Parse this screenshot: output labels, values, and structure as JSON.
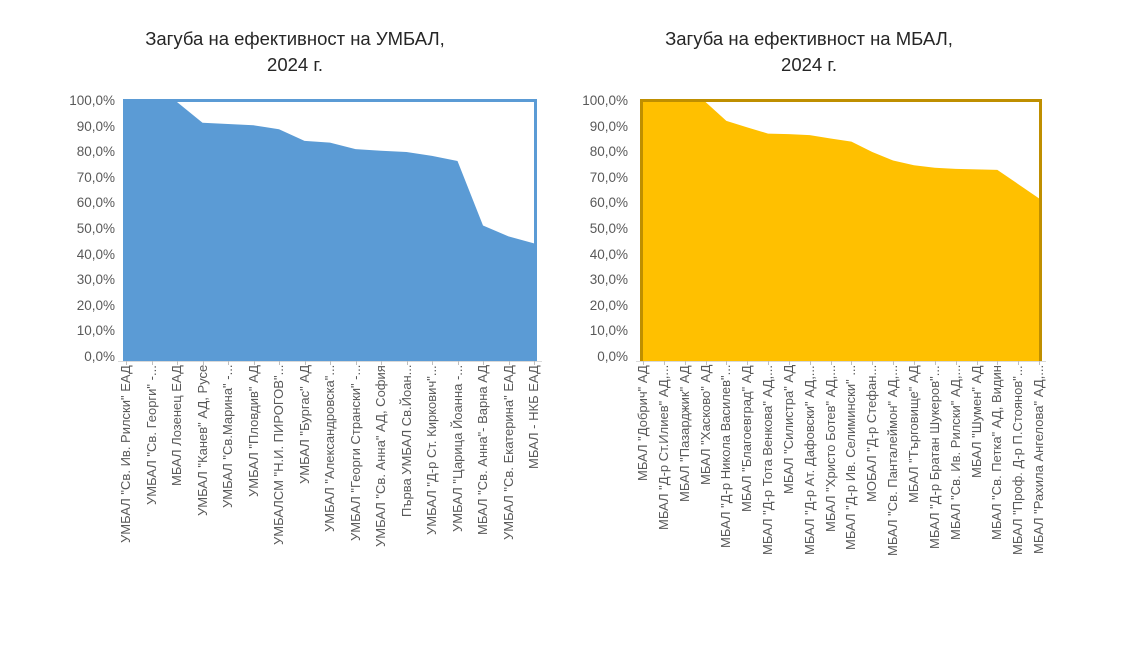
{
  "page": {
    "background": "#ffffff"
  },
  "style": {
    "title_color": "#262626",
    "axis_label_color": "#595959",
    "axis_line_color": "#D9D9D9",
    "tick_color": "#BFBFBF"
  },
  "chart_data": [
    {
      "type": "area",
      "title": "Загуба на ефективност на УМБАЛ,\n2024 г.",
      "xlabel": "",
      "ylabel": "",
      "legend": "none",
      "grid": false,
      "fill_color": "#5B9BD5",
      "plot_border_color": "#5B9BD5",
      "y_axis": {
        "min": 0,
        "max": 100,
        "step": 10,
        "format": "0,0%"
      },
      "y_tick_labels": [
        "100,0%",
        "90,0%",
        "80,0%",
        "70,0%",
        "60,0%",
        "50,0%",
        "40,0%",
        "30,0%",
        "20,0%",
        "10,0%",
        "0,0%"
      ],
      "categories": [
        "УМБАЛ \"Св. Ив. Рилски\" ЕАД",
        "УМБАЛ \"Св. Георги\" -...",
        "МБАЛ Лозенец ЕАД",
        "УМБАЛ \"Канев\" АД, Русе",
        "УМБАЛ \"Св.Марина\" -...",
        "УМБАЛ \"Пловдив\" АД",
        "УМБАЛСМ \"Н.И. ПИРОГОВ\"...",
        "УМБАЛ \"Бургас\" АД",
        "УМБАЛ \"Александровска\"...",
        "УМБАЛ \"Георги Странски\" -...",
        "УМБАЛ \"Св. Анна\" АД, София",
        "Първа УМБАЛ Св.Йоан...",
        "УМБАЛ \"Д-р Ст. Киркович\"...",
        "УМБАЛ \"Царица Йоанна -...",
        "МБАЛ \"Св. Анна\"- Варна АД",
        "УМБАЛ \"Св. Екатерина\" ЕАД",
        "МБАЛ - НКБ ЕАД"
      ],
      "values": [
        100,
        100,
        100,
        92,
        91.5,
        91,
        89.5,
        85,
        84.3,
        81.8,
        81.2,
        80.7,
        79.2,
        77.2,
        52.3,
        48.1,
        45.4
      ]
    },
    {
      "type": "area",
      "title": "Загуба на ефективност на МБАЛ,\n2024 г.",
      "xlabel": "",
      "ylabel": "",
      "legend": "none",
      "grid": false,
      "fill_color": "#FFC000",
      "plot_border_color": "#BF8F00",
      "y_axis": {
        "min": 0,
        "max": 100,
        "step": 10,
        "format": "0,0%"
      },
      "y_tick_labels": [
        "100,0%",
        "90,0%",
        "80,0%",
        "70,0%",
        "60,0%",
        "50,0%",
        "40,0%",
        "30,0%",
        "20,0%",
        "10,0%",
        "0,0%"
      ],
      "categories": [
        "МБАЛ \"Добрич\" АД",
        "МБАЛ \"Д-р Ст.Илиев\" АД,...",
        "МБАЛ \"Пазарджик\" АД",
        "МБАЛ \"Хасково\" АД",
        "МБАЛ \"Д-р Никола Василев\"...",
        "МБАЛ \"Благоевград\" АД",
        "МБАЛ \"Д-р Тота Венкова\" АД,...",
        "МБАЛ \"Силистра\" АД",
        "МБАЛ \"Д-р Ат. Дафовски\" АД,...",
        "МБАЛ \"Христо Ботев\" АД,...",
        "МБАЛ \"Д-р Ив. Селимински\" ...",
        "МОБАЛ \"Д-р Стефан...",
        "МБАЛ \"Св. Панталеймон\" АД,...",
        "МБАЛ \"Търговище\" АД",
        "МБАЛ \"Д-р Братан Шукеров\"...",
        "МБАЛ \"Св. Ив. Рилски\" АД,...",
        "МБАЛ \"Шумен\" АД",
        "МБАЛ \"Св. Петка\" АД, Видин",
        "МБАЛ \"Проф. Д-р П.Стоянов\"...",
        "МБАЛ \"Рахила Ангелова\" АД,..."
      ],
      "values": [
        100,
        100,
        100,
        100,
        92.7,
        90.2,
        87.8,
        87.6,
        87.2,
        85.9,
        84.7,
        80.7,
        77.4,
        75.6,
        74.6,
        74.2,
        74,
        73.8,
        68.3,
        62.8
      ]
    }
  ]
}
